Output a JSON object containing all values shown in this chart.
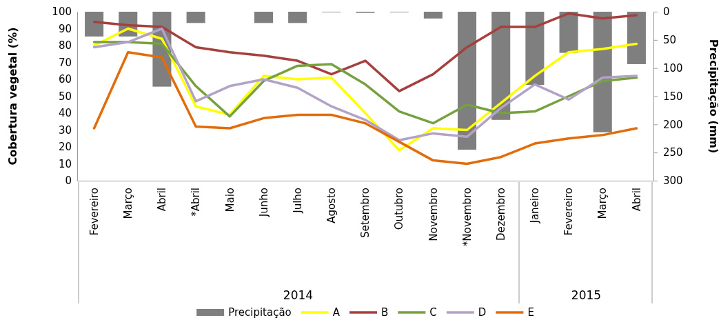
{
  "chart_data": {
    "type": "line",
    "categories": [
      "Fevereiro",
      "Março",
      "Abril",
      "*Abril",
      "Maio",
      "Junho",
      "Julho",
      "Agosto",
      "Setembro",
      "Outubro",
      "Novembro",
      "*Novembro",
      "Dezembro",
      "Janeiro",
      "Fevereiro",
      "Março",
      "Abril"
    ],
    "ylabel": "Cobertura vegetal (%)",
    "y2label": "Precipitação (mm)",
    "ylim": [
      0,
      100
    ],
    "yticks": [
      0,
      10,
      20,
      30,
      40,
      50,
      60,
      70,
      80,
      90,
      100
    ],
    "y2lim": [
      300,
      0
    ],
    "y2ticks": [
      0,
      50,
      100,
      150,
      200,
      250,
      300
    ],
    "series": [
      {
        "name": "Precipitação",
        "type": "bar",
        "axis": "y2",
        "color": "#7f7f7f",
        "values": [
          44,
          44,
          133,
          20,
          0,
          20,
          20,
          1,
          2,
          1,
          12,
          245,
          192,
          130,
          73,
          214,
          93
        ]
      },
      {
        "name": "A",
        "color": "#ffff00",
        "values": [
          80,
          90,
          84,
          44,
          39,
          62,
          60,
          61,
          40,
          18,
          31,
          30,
          46,
          62,
          76,
          78,
          81
        ]
      },
      {
        "name": "B",
        "color": "#a5403e",
        "values": [
          94,
          92,
          91,
          79,
          76,
          74,
          71,
          63,
          71,
          53,
          63,
          79,
          91,
          91,
          99,
          96,
          98
        ]
      },
      {
        "name": "C",
        "color": "#77a03f",
        "values": [
          82,
          82,
          81,
          56,
          38,
          59,
          68,
          69,
          57,
          41,
          34,
          45,
          40,
          41,
          50,
          59,
          61
        ]
      },
      {
        "name": "D",
        "color": "#b3a2c7",
        "values": [
          79,
          82,
          90,
          47,
          56,
          60,
          55,
          44,
          36,
          24,
          28,
          26,
          43,
          57,
          48,
          61,
          62
        ]
      },
      {
        "name": "E",
        "color": "#e36c0a",
        "values": [
          31,
          76,
          73,
          32,
          31,
          37,
          39,
          39,
          34,
          23,
          12,
          10,
          14,
          22,
          25,
          27,
          31
        ]
      }
    ],
    "annotations": [
      "2014",
      "2015"
    ],
    "legend": "bottom",
    "grid": false
  }
}
